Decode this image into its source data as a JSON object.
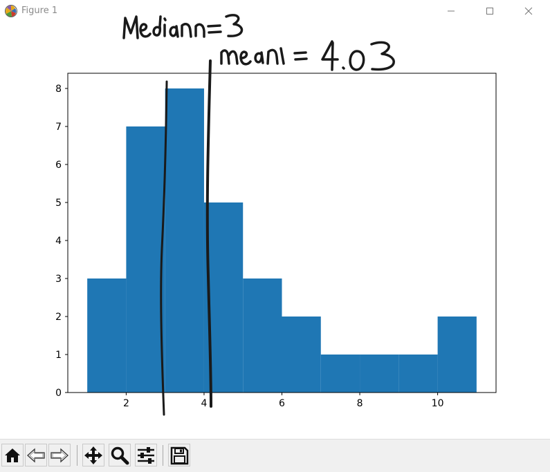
{
  "window": {
    "title": "Figure 1"
  },
  "chart_data": {
    "type": "bar",
    "bin_edges": [
      1,
      2,
      3,
      4,
      5,
      6,
      7,
      8,
      9,
      10,
      11
    ],
    "values": [
      3,
      7,
      8,
      5,
      3,
      2,
      1,
      1,
      1,
      2
    ],
    "xlim": [
      0.5,
      11.5
    ],
    "ylim": [
      0,
      8.4
    ],
    "xticks": [
      2,
      4,
      6,
      8,
      10
    ],
    "yticks": [
      0,
      1,
      2,
      3,
      4,
      5,
      6,
      7,
      8
    ],
    "bar_color": "#1f77b4",
    "grid": false,
    "annotations": [
      {
        "text": "Median=3",
        "x": 3,
        "style": "handwritten"
      },
      {
        "text": "mean = 4.03",
        "x": 4.03,
        "style": "handwritten"
      }
    ]
  },
  "toolbar": {
    "tools": [
      "home-icon",
      "back-icon",
      "forward-icon",
      "pan-icon",
      "zoom-icon",
      "configure-subplots-icon",
      "save-icon"
    ]
  }
}
